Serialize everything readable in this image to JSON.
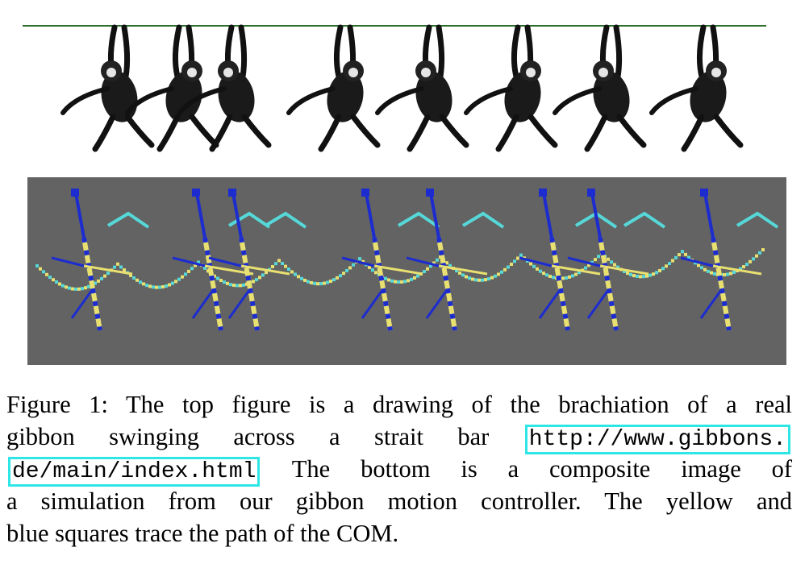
{
  "caption": {
    "label": "Figure 1:",
    "line1": "The top figure is a drawing of the brachiation of a real",
    "line2_text": "gibbon swinging across a strait bar",
    "link_part1": "http://www.gibbons.",
    "link_part2": "de/main/index.html",
    "line3_text": "The bottom is a composite image of",
    "line4": "a simulation from our gibbon motion controller. The yellow and",
    "line5": "blue squares trace the path of the COM."
  },
  "colors": {
    "link_box": "#2ee6e6",
    "sim_background": "#636363",
    "com_yellow": "#e8e070",
    "com_cyan": "#56d8d8",
    "limb_blue": "#1c2ccf"
  }
}
